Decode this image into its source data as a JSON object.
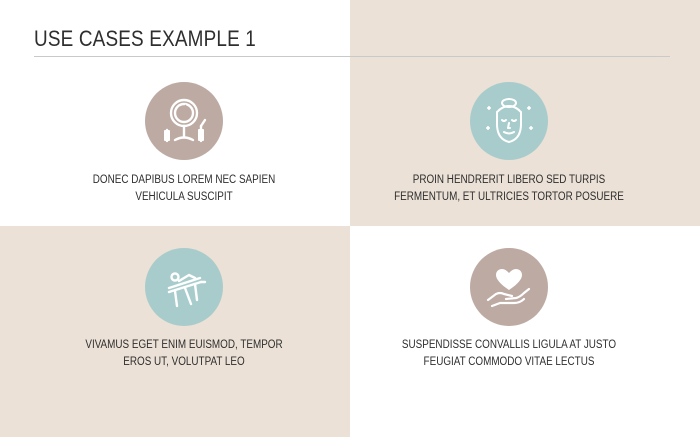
{
  "header": {
    "title": "USE CASES EXAMPLE 1"
  },
  "colors": {
    "beige": "#ebe1d6",
    "taupe_circle": "#bcaaa3",
    "teal_circle": "#a8cccc",
    "text": "#2e2e2e"
  },
  "cases": [
    {
      "icon": "vanity-mirror-icon",
      "line1": "DONEC DAPIBUS LOREM NEC SAPIEN",
      "line2": "VEHICULA SUSCIPIT"
    },
    {
      "icon": "face-care-icon",
      "line1": "PROIN HENDRERIT LIBERO SED TURPIS",
      "line2": "FERMENTUM, ET ULTRICIES TORTOR POSUERE"
    },
    {
      "icon": "massage-table-icon",
      "line1": "VIVAMUS EGET ENIM EUISMOD, TEMPOR",
      "line2": "EROS UT, VOLUTPAT LEO"
    },
    {
      "icon": "heart-in-hand-icon",
      "line1": "SUSPENDISSE CONVALLIS LIGULA AT JUSTO",
      "line2": "FEUGIAT COMMODO VITAE LECTUS"
    }
  ]
}
